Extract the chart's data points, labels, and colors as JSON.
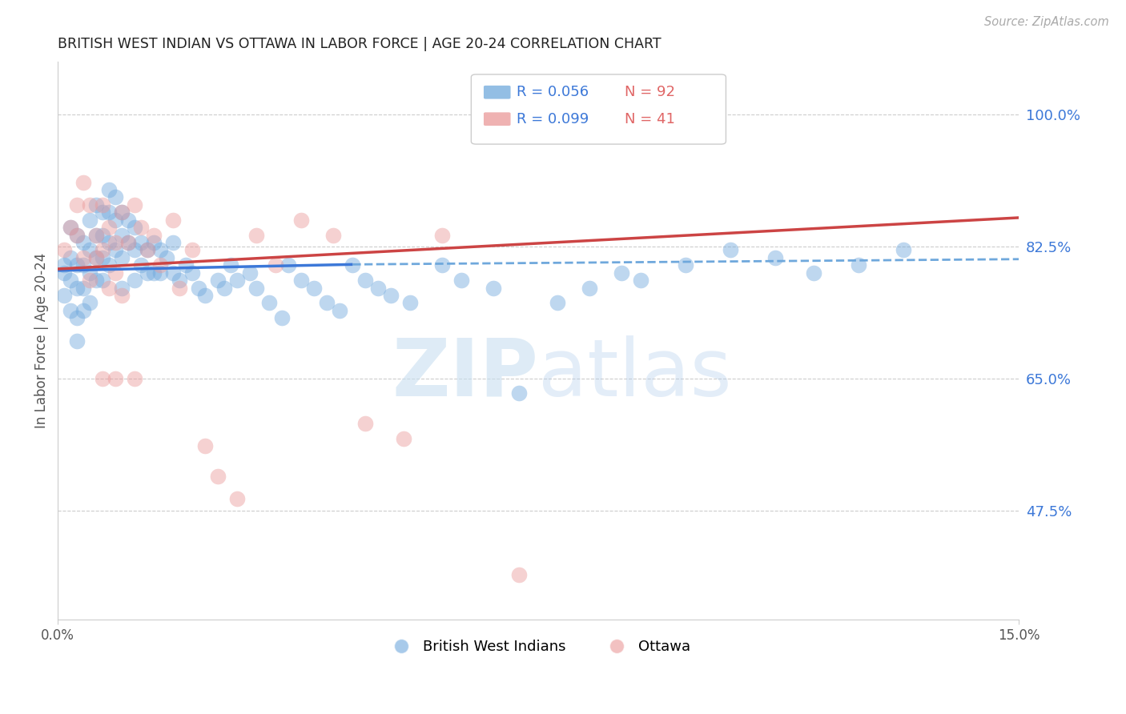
{
  "title": "BRITISH WEST INDIAN VS OTTAWA IN LABOR FORCE | AGE 20-24 CORRELATION CHART",
  "source": "Source: ZipAtlas.com",
  "ylabel": "In Labor Force | Age 20-24",
  "ytick_labels": [
    "100.0%",
    "82.5%",
    "65.0%",
    "47.5%"
  ],
  "ytick_values": [
    1.0,
    0.825,
    0.65,
    0.475
  ],
  "xlim": [
    0.0,
    0.15
  ],
  "ylim": [
    0.33,
    1.07
  ],
  "blue_color": "#6fa8dc",
  "pink_color": "#ea9999",
  "blue_line_color": "#3c78d8",
  "pink_line_color": "#cc4444",
  "blue_dash_color": "#6fa8dc",
  "legend_r_blue": "R = 0.056",
  "legend_n_blue": "N = 92",
  "legend_r_pink": "R = 0.099",
  "legend_n_pink": "N = 41",
  "blue_trend": [
    0.0,
    0.046,
    0.15,
    0.793,
    0.801,
    0.808
  ],
  "pink_trend": [
    0.0,
    0.15,
    0.795,
    0.863
  ],
  "blue_scatter_x": [
    0.001,
    0.001,
    0.001,
    0.002,
    0.002,
    0.002,
    0.002,
    0.003,
    0.003,
    0.003,
    0.003,
    0.003,
    0.004,
    0.004,
    0.004,
    0.004,
    0.005,
    0.005,
    0.005,
    0.005,
    0.006,
    0.006,
    0.006,
    0.006,
    0.007,
    0.007,
    0.007,
    0.007,
    0.008,
    0.008,
    0.008,
    0.008,
    0.009,
    0.009,
    0.009,
    0.01,
    0.01,
    0.01,
    0.01,
    0.011,
    0.011,
    0.012,
    0.012,
    0.012,
    0.013,
    0.013,
    0.014,
    0.014,
    0.015,
    0.015,
    0.016,
    0.016,
    0.017,
    0.018,
    0.018,
    0.019,
    0.02,
    0.021,
    0.022,
    0.023,
    0.025,
    0.026,
    0.027,
    0.028,
    0.03,
    0.031,
    0.033,
    0.035,
    0.036,
    0.038,
    0.04,
    0.042,
    0.044,
    0.046,
    0.048,
    0.05,
    0.052,
    0.055,
    0.06,
    0.063,
    0.068,
    0.072,
    0.078,
    0.083,
    0.088,
    0.091,
    0.098,
    0.105,
    0.112,
    0.118,
    0.125,
    0.132
  ],
  "blue_scatter_y": [
    0.8,
    0.79,
    0.76,
    0.85,
    0.81,
    0.78,
    0.74,
    0.84,
    0.8,
    0.77,
    0.73,
    0.7,
    0.83,
    0.8,
    0.77,
    0.74,
    0.86,
    0.82,
    0.79,
    0.75,
    0.88,
    0.84,
    0.81,
    0.78,
    0.87,
    0.84,
    0.81,
    0.78,
    0.9,
    0.87,
    0.83,
    0.8,
    0.89,
    0.86,
    0.82,
    0.87,
    0.84,
    0.81,
    0.77,
    0.86,
    0.83,
    0.85,
    0.82,
    0.78,
    0.83,
    0.8,
    0.82,
    0.79,
    0.83,
    0.79,
    0.82,
    0.79,
    0.81,
    0.83,
    0.79,
    0.78,
    0.8,
    0.79,
    0.77,
    0.76,
    0.78,
    0.77,
    0.8,
    0.78,
    0.79,
    0.77,
    0.75,
    0.73,
    0.8,
    0.78,
    0.77,
    0.75,
    0.74,
    0.8,
    0.78,
    0.77,
    0.76,
    0.75,
    0.8,
    0.78,
    0.77,
    0.63,
    0.75,
    0.77,
    0.79,
    0.78,
    0.8,
    0.82,
    0.81,
    0.79,
    0.8,
    0.82
  ],
  "pink_scatter_x": [
    0.001,
    0.002,
    0.003,
    0.003,
    0.004,
    0.004,
    0.005,
    0.005,
    0.006,
    0.006,
    0.007,
    0.007,
    0.008,
    0.008,
    0.009,
    0.009,
    0.01,
    0.01,
    0.011,
    0.012,
    0.013,
    0.014,
    0.015,
    0.016,
    0.018,
    0.019,
    0.021,
    0.023,
    0.025,
    0.028,
    0.031,
    0.034,
    0.038,
    0.043,
    0.048,
    0.054,
    0.06,
    0.012,
    0.007,
    0.009,
    0.072
  ],
  "pink_scatter_y": [
    0.82,
    0.85,
    0.88,
    0.84,
    0.81,
    0.91,
    0.78,
    0.88,
    0.84,
    0.81,
    0.88,
    0.82,
    0.85,
    0.77,
    0.83,
    0.79,
    0.87,
    0.76,
    0.83,
    0.88,
    0.85,
    0.82,
    0.84,
    0.8,
    0.86,
    0.77,
    0.82,
    0.56,
    0.52,
    0.49,
    0.84,
    0.8,
    0.86,
    0.84,
    0.59,
    0.57,
    0.84,
    0.65,
    0.65,
    0.65,
    0.39
  ]
}
